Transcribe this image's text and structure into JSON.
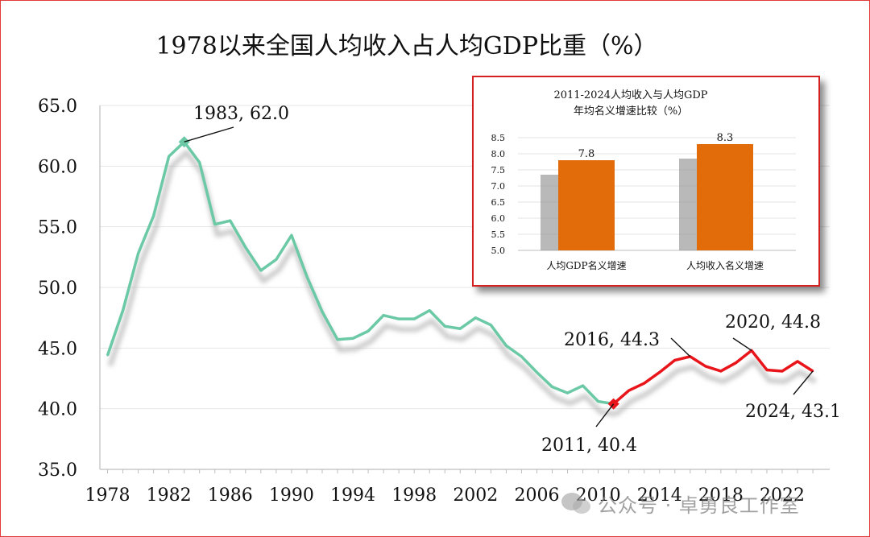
{
  "chart_data": [
    {
      "type": "line",
      "title": "1978以来全国人均收入占人均GDP比重（%）",
      "ylim": [
        35,
        65
      ],
      "yticks": [
        "65.0",
        "60.0",
        "55.0",
        "50.0",
        "45.0",
        "40.0",
        "35.0"
      ],
      "xticks": [
        "1978",
        "1982",
        "1986",
        "1990",
        "1994",
        "1998",
        "2002",
        "2006",
        "2010",
        "2014",
        "2018",
        "2022"
      ],
      "grid": true,
      "series": [
        {
          "color": "#6cc9a6",
          "x": [
            1978,
            1979,
            1980,
            1981,
            1982,
            1983,
            1984,
            1985,
            1986,
            1987,
            1988,
            1989,
            1990,
            1991,
            1992,
            1993,
            1994,
            1995,
            1996,
            1997,
            1998,
            1999,
            2000,
            2001,
            2002,
            2003,
            2004,
            2005,
            2006,
            2007,
            2008,
            2009,
            2010,
            2011
          ],
          "values": [
            44.4,
            48.1,
            52.8,
            55.9,
            60.8,
            62.0,
            60.3,
            55.2,
            55.5,
            53.3,
            51.4,
            52.3,
            54.3,
            50.9,
            48.0,
            45.7,
            45.8,
            46.4,
            47.7,
            47.4,
            47.4,
            48.1,
            46.8,
            46.6,
            47.5,
            46.9,
            45.2,
            44.3,
            43.0,
            41.8,
            41.3,
            41.9,
            40.6,
            40.4
          ]
        },
        {
          "color": "#e8151b",
          "x": [
            2011,
            2012,
            2013,
            2014,
            2015,
            2016,
            2017,
            2018,
            2019,
            2020,
            2021,
            2022,
            2023,
            2024
          ],
          "values": [
            40.4,
            41.5,
            42.1,
            43.0,
            44.0,
            44.3,
            43.5,
            43.1,
            43.8,
            44.8,
            43.2,
            43.1,
            43.9,
            43.1
          ]
        }
      ],
      "annotations": [
        {
          "label": "1983, 62.0",
          "x": 1983,
          "y": 62.0
        },
        {
          "label": "2011, 40.4",
          "x": 2011,
          "y": 40.4
        },
        {
          "label": "2016, 44.3",
          "x": 2016,
          "y": 44.3
        },
        {
          "label": "2020, 44.8",
          "x": 2020,
          "y": 44.8
        },
        {
          "label": "2024, 43.1",
          "x": 2024,
          "y": 43.1
        }
      ]
    },
    {
      "type": "bar",
      "title": "2011-2024人均收入与人均GDP\n年均名义增速比较（%）",
      "title_lines": [
        "2011-2024人均收入与人均GDP",
        "年均名义增速比较（%）"
      ],
      "categories": [
        "人均GDP名义增速",
        "人均收入名义增速"
      ],
      "values": [
        7.8,
        8.3
      ],
      "value_labels": [
        "7.8",
        "8.3"
      ],
      "bar_color": "#e36c0a",
      "ylim": [
        5.0,
        8.5
      ],
      "yticks": [
        "8.5",
        "8.0",
        "7.5",
        "7.0",
        "6.5",
        "6.0",
        "5.5",
        "5.0"
      ],
      "grid": true
    }
  ],
  "watermark": {
    "text": "公众号 · 卓勇良工作室"
  }
}
